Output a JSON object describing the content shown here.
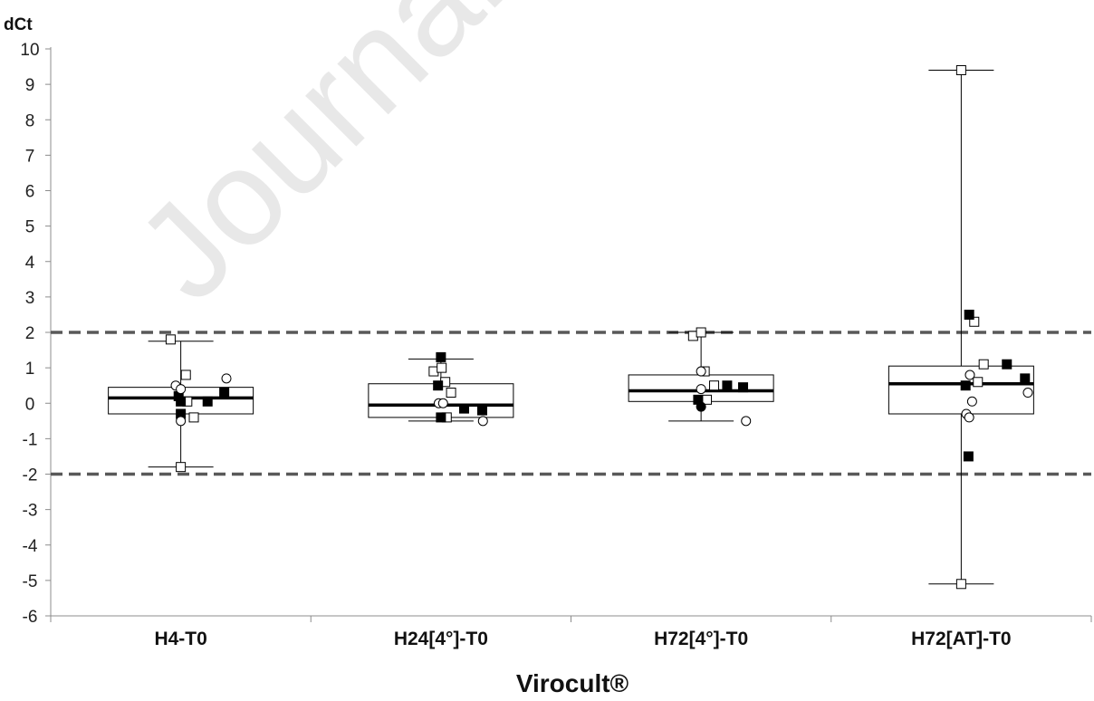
{
  "watermark": "Journal",
  "chart_data": {
    "type": "box",
    "ylabel": "dCt",
    "xlabel": "Virocult®",
    "ylim": [
      -6,
      10
    ],
    "yticks": [
      10,
      9,
      8,
      7,
      6,
      5,
      4,
      3,
      2,
      1,
      0,
      -1,
      -2,
      -3,
      -4,
      -5,
      -6
    ],
    "grid": false,
    "reference_lines": [
      {
        "y": 2,
        "style": "dashed",
        "color": "#595959"
      },
      {
        "y": -2,
        "style": "dashed",
        "color": "#595959"
      }
    ],
    "categories": [
      "H4-T0",
      "H24[4°]-T0",
      "H72[4°]-T0",
      "H72[AT]-T0"
    ],
    "boxes": [
      {
        "whisker_low": -1.8,
        "q1": -0.3,
        "median": 0.15,
        "q3": 0.45,
        "whisker_high": 1.75
      },
      {
        "whisker_low": -0.5,
        "q1": -0.4,
        "median": -0.05,
        "q3": 0.55,
        "whisker_high": 1.25
      },
      {
        "whisker_low": -0.5,
        "q1": 0.05,
        "median": 0.35,
        "q3": 0.8,
        "whisker_high": 2.0
      },
      {
        "whisker_low": -5.1,
        "q1": -0.3,
        "median": 0.55,
        "q3": 1.05,
        "whisker_high": 9.4
      }
    ],
    "points": [
      [
        {
          "dx": -0.14,
          "y": 1.8,
          "m": "sq-open"
        },
        {
          "dx": 0.07,
          "y": 0.8,
          "m": "sq-open"
        },
        {
          "dx": 0.09,
          "y": 0.05,
          "m": "sq-open"
        },
        {
          "dx": 0.18,
          "y": -0.4,
          "m": "sq-open"
        },
        {
          "dx": 0.0,
          "y": -1.8,
          "m": "sq-open"
        },
        {
          "dx": -0.03,
          "y": 0.2,
          "m": "sq-filled"
        },
        {
          "dx": 0.0,
          "y": 0.05,
          "m": "sq-filled"
        },
        {
          "dx": 0.0,
          "y": -0.3,
          "m": "sq-filled"
        },
        {
          "dx": 0.37,
          "y": 0.05,
          "m": "sq-filled"
        },
        {
          "dx": 0.6,
          "y": 0.3,
          "m": "sq-filled"
        },
        {
          "dx": -0.07,
          "y": 0.5,
          "m": "circle-open"
        },
        {
          "dx": 0.0,
          "y": 0.4,
          "m": "circle-open"
        },
        {
          "dx": 0.0,
          "y": -0.5,
          "m": "circle-open"
        },
        {
          "dx": 0.63,
          "y": 0.7,
          "m": "circle-open"
        }
      ],
      [
        {
          "dx": -0.1,
          "y": 0.9,
          "m": "sq-open"
        },
        {
          "dx": 0.01,
          "y": 1.0,
          "m": "sq-open"
        },
        {
          "dx": 0.06,
          "y": 0.6,
          "m": "sq-open"
        },
        {
          "dx": 0.14,
          "y": 0.3,
          "m": "sq-open"
        },
        {
          "dx": 0.08,
          "y": -0.4,
          "m": "sq-open"
        },
        {
          "dx": 0.0,
          "y": 1.3,
          "m": "sq-filled"
        },
        {
          "dx": -0.04,
          "y": 0.5,
          "m": "sq-filled"
        },
        {
          "dx": 0.0,
          "y": -0.4,
          "m": "sq-filled"
        },
        {
          "dx": 0.32,
          "y": -0.15,
          "m": "sq-filled"
        },
        {
          "dx": 0.57,
          "y": -0.2,
          "m": "sq-filled"
        },
        {
          "dx": -0.03,
          "y": 0.0,
          "m": "circle-open"
        },
        {
          "dx": 0.03,
          "y": 0.0,
          "m": "circle-open"
        },
        {
          "dx": 0.58,
          "y": -0.5,
          "m": "circle-open"
        }
      ],
      [
        {
          "dx": -0.11,
          "y": 1.9,
          "m": "sq-open"
        },
        {
          "dx": 0.0,
          "y": 2.0,
          "m": "sq-open"
        },
        {
          "dx": 0.05,
          "y": 0.9,
          "m": "sq-open"
        },
        {
          "dx": 0.18,
          "y": 0.5,
          "m": "sq-open"
        },
        {
          "dx": 0.08,
          "y": 0.1,
          "m": "sq-open"
        },
        {
          "dx": -0.04,
          "y": 0.1,
          "m": "sq-filled"
        },
        {
          "dx": 0.36,
          "y": 0.5,
          "m": "sq-filled"
        },
        {
          "dx": 0.58,
          "y": 0.45,
          "m": "sq-filled"
        },
        {
          "dx": 0.0,
          "y": 0.9,
          "m": "circle-open"
        },
        {
          "dx": 0.0,
          "y": 0.4,
          "m": "circle-open"
        },
        {
          "dx": 0.0,
          "y": -0.1,
          "m": "circle-filled"
        },
        {
          "dx": 0.62,
          "y": -0.5,
          "m": "circle-open"
        }
      ],
      [
        {
          "dx": 0.0,
          "y": 9.4,
          "m": "sq-open"
        },
        {
          "dx": 0.18,
          "y": 2.3,
          "m": "sq-open"
        },
        {
          "dx": 0.31,
          "y": 1.1,
          "m": "sq-open"
        },
        {
          "dx": 0.23,
          "y": 0.6,
          "m": "sq-open"
        },
        {
          "dx": 0.0,
          "y": -5.1,
          "m": "sq-open"
        },
        {
          "dx": 0.11,
          "y": 2.5,
          "m": "sq-filled"
        },
        {
          "dx": 0.63,
          "y": 1.1,
          "m": "sq-filled"
        },
        {
          "dx": 0.06,
          "y": 0.5,
          "m": "sq-filled"
        },
        {
          "dx": 0.88,
          "y": 0.7,
          "m": "sq-filled"
        },
        {
          "dx": 0.1,
          "y": -1.5,
          "m": "sq-filled"
        },
        {
          "dx": 0.12,
          "y": 0.8,
          "m": "circle-open"
        },
        {
          "dx": 0.15,
          "y": 0.05,
          "m": "circle-open"
        },
        {
          "dx": 0.07,
          "y": -0.3,
          "m": "circle-open"
        },
        {
          "dx": 0.11,
          "y": -0.4,
          "m": "circle-open"
        },
        {
          "dx": 0.92,
          "y": 0.3,
          "m": "circle-open"
        }
      ]
    ]
  }
}
